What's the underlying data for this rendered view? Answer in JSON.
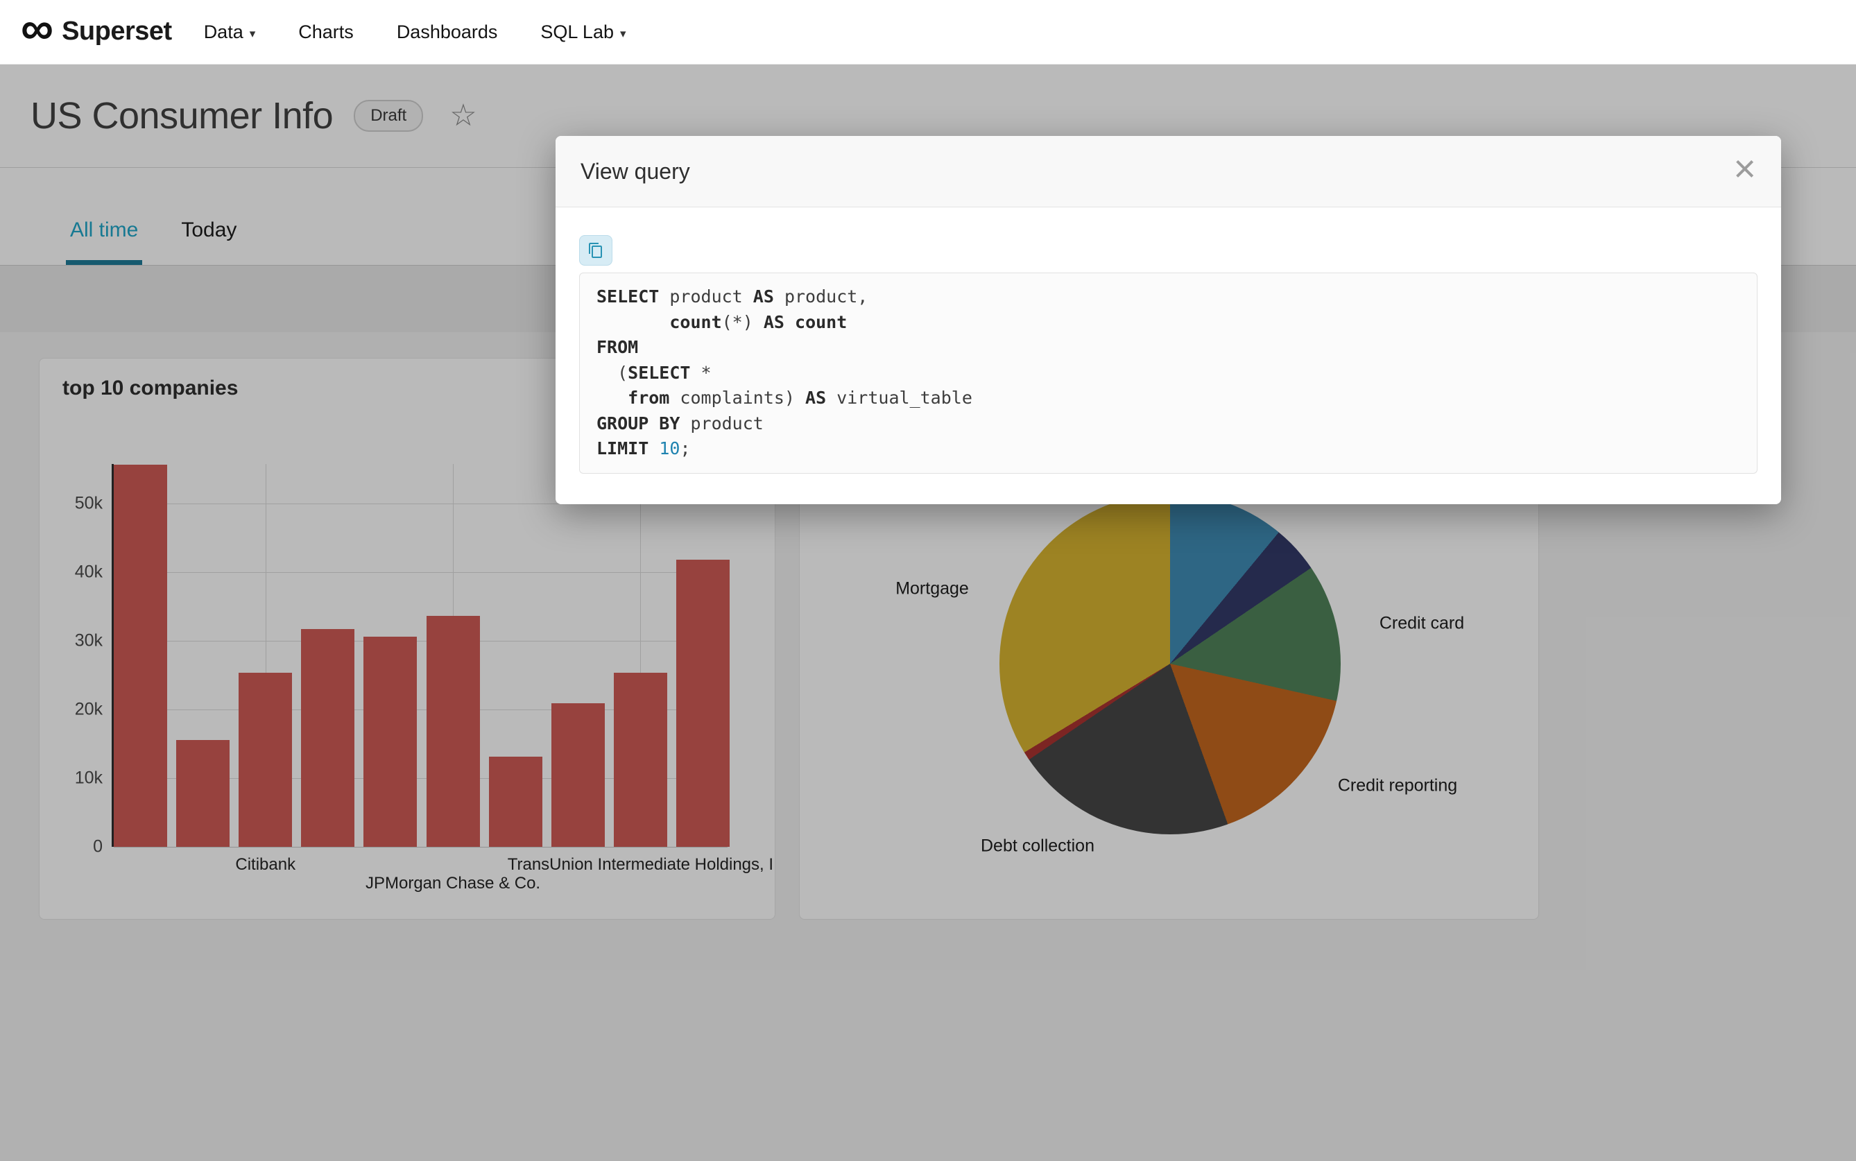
{
  "icons": {
    "logo": "∞",
    "star": "☆",
    "caret": "▾",
    "close": "×"
  },
  "nav": {
    "brand": "Superset",
    "items": [
      {
        "label": "Data",
        "caret": true
      },
      {
        "label": "Charts",
        "caret": false
      },
      {
        "label": "Dashboards",
        "caret": false
      },
      {
        "label": "SQL Lab",
        "caret": true
      }
    ]
  },
  "header": {
    "title": "US Consumer Info",
    "badge": "Draft"
  },
  "tabs": [
    {
      "label": "All time",
      "active": true
    },
    {
      "label": "Today",
      "active": false
    }
  ],
  "modal": {
    "title": "View query",
    "sql_lines": [
      [
        {
          "t": "SELECT",
          "c": "kw"
        },
        {
          "t": " product ",
          "c": ""
        },
        {
          "t": "AS",
          "c": "kw"
        },
        {
          "t": " product,",
          "c": ""
        }
      ],
      [
        {
          "t": "       ",
          "c": ""
        },
        {
          "t": "count",
          "c": "kw"
        },
        {
          "t": "(*) ",
          "c": ""
        },
        {
          "t": "AS",
          "c": "kw"
        },
        {
          "t": " ",
          "c": ""
        },
        {
          "t": "count",
          "c": "kw"
        }
      ],
      [
        {
          "t": "FROM",
          "c": "kw"
        }
      ],
      [
        {
          "t": "  (",
          "c": ""
        },
        {
          "t": "SELECT",
          "c": "kw"
        },
        {
          "t": " *",
          "c": ""
        }
      ],
      [
        {
          "t": "   ",
          "c": ""
        },
        {
          "t": "from",
          "c": "kw"
        },
        {
          "t": " complaints) ",
          "c": ""
        },
        {
          "t": "AS",
          "c": "kw"
        },
        {
          "t": " virtual_table",
          "c": ""
        }
      ],
      [
        {
          "t": "GROUP BY",
          "c": "kw"
        },
        {
          "t": " product",
          "c": ""
        }
      ],
      [
        {
          "t": "LIMIT",
          "c": "kw"
        },
        {
          "t": " ",
          "c": ""
        },
        {
          "t": "10",
          "c": "num"
        },
        {
          "t": ";",
          "c": ""
        }
      ]
    ]
  },
  "chart_data": [
    {
      "type": "bar",
      "title": "top 10 companies",
      "values": [
        55700,
        15600,
        25400,
        31700,
        30600,
        33700,
        13100,
        20900,
        25400,
        41900
      ],
      "ymax": 55800,
      "ytick_step": 10000,
      "ytick_labels": [
        "0",
        "10k",
        "20k",
        "30k",
        "40k",
        "50k"
      ],
      "xlabels": [
        {
          "text": "Citibank",
          "bar": 2,
          "row": 0
        },
        {
          "text": "JPMorgan Chase & Co.",
          "bar": 5,
          "row": 1
        },
        {
          "text": "TransUnion Intermediate Holdings, I",
          "bar": 8,
          "row": 0
        }
      ],
      "bar_color": "#cf5b56",
      "grid": true
    },
    {
      "type": "pie",
      "slices": [
        {
          "label": "",
          "pct": 11,
          "color": "#3f8cb5"
        },
        {
          "label": "",
          "pct": 4.5,
          "color": "#333a69"
        },
        {
          "label": "Credit card",
          "pct": 13,
          "color": "#50835a"
        },
        {
          "label": "Credit reporting",
          "pct": 16,
          "color": "#c4671f"
        },
        {
          "label": "Debt collection",
          "pct": 21,
          "color": "#474747"
        },
        {
          "label": "",
          "pct": 0.8,
          "color": "#aa3430"
        },
        {
          "label": "Mortgage",
          "pct": 33.7,
          "color": "#d7b431"
        }
      ],
      "visible_labels": [
        "Mortgage",
        "Credit card",
        "Credit reporting",
        "Debt collection"
      ]
    }
  ],
  "colors": {
    "accent": "#20a7c9",
    "bar": "#cf5b56"
  }
}
